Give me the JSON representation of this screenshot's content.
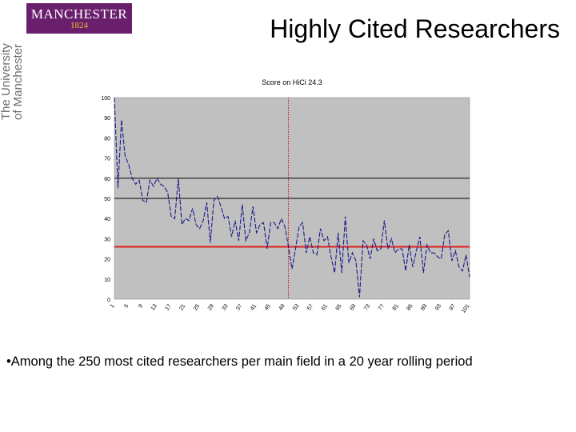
{
  "logo": {
    "name": "MANCHESTER",
    "year": "1824"
  },
  "university": {
    "line1": "The University",
    "line2": "of Manchester"
  },
  "slide": {
    "title": "Highly Cited Researchers",
    "bullet": "•Among the 250 most cited researchers per main field  in a 20 year rolling period"
  },
  "chart_data": {
    "type": "line",
    "title": "Score on HiCi 24.3",
    "xlabel": "",
    "ylabel": "",
    "ylim": [
      0,
      100
    ],
    "yticks": [
      0,
      10,
      20,
      30,
      40,
      50,
      60,
      70,
      80,
      90,
      100
    ],
    "xlim": [
      1,
      101
    ],
    "xticks": [
      1,
      5,
      9,
      13,
      17,
      21,
      25,
      29,
      33,
      37,
      41,
      45,
      49,
      53,
      57,
      61,
      65,
      69,
      73,
      77,
      81,
      85,
      89,
      93,
      97,
      101
    ],
    "plot_background": "#c0c0c0",
    "line_color": "#1a1a8c",
    "reference_lines": [
      {
        "axis": "y",
        "value": 60,
        "color": "#000000",
        "style": "solid"
      },
      {
        "axis": "y",
        "value": 50,
        "color": "#000000",
        "style": "solid"
      },
      {
        "axis": "y",
        "value": 26,
        "color": "#e0201a",
        "style": "solid"
      },
      {
        "axis": "x",
        "value": 50,
        "color": "#c0141a",
        "style": "dotted"
      }
    ],
    "series": [
      {
        "values": [
          100,
          55,
          89,
          71,
          67,
          60,
          57,
          59,
          49,
          48,
          59,
          56,
          60,
          57,
          56,
          53,
          41,
          40,
          60,
          37,
          40,
          39,
          45,
          37,
          35,
          39,
          48,
          28,
          49,
          51,
          46,
          40,
          41,
          31,
          39,
          29,
          47,
          29,
          33,
          46,
          33,
          37,
          38,
          25,
          38,
          38,
          35,
          40,
          36,
          26,
          15,
          25,
          36,
          38,
          23,
          31,
          23,
          22,
          35,
          29,
          31,
          21,
          13,
          33,
          13,
          41,
          18,
          23,
          19,
          1,
          29,
          27,
          20,
          30,
          24,
          25,
          39,
          25,
          30,
          23,
          25,
          25,
          14,
          27,
          16,
          24,
          31,
          13,
          27,
          23,
          23,
          21,
          20,
          32,
          34,
          19,
          24,
          16,
          14,
          22,
          11
        ]
      }
    ]
  }
}
